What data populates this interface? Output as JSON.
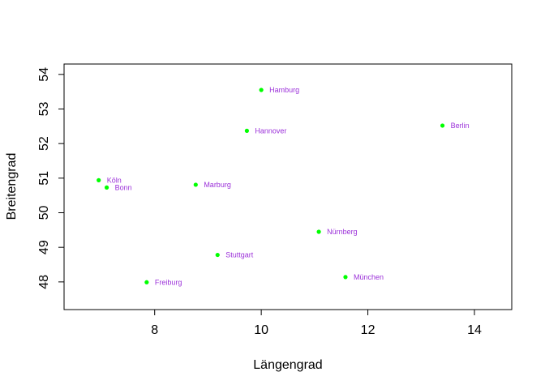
{
  "chart_data": {
    "type": "scatter",
    "title": "",
    "xlabel": "Längengrad",
    "ylabel": "Breitengrad",
    "xlim": [
      6.3,
      14.7
    ],
    "ylim": [
      47.2,
      54.3
    ],
    "xticks": [
      8,
      10,
      12,
      14
    ],
    "yticks": [
      48,
      49,
      50,
      51,
      52,
      53,
      54
    ],
    "grid": false,
    "point_color": "#00ff00",
    "label_color": "#9b30d9",
    "points": [
      {
        "label": "Hamburg",
        "x": 10.0,
        "y": 53.55
      },
      {
        "label": "Berlin",
        "x": 13.4,
        "y": 52.52
      },
      {
        "label": "Hannover",
        "x": 9.73,
        "y": 52.37
      },
      {
        "label": "Köln",
        "x": 6.95,
        "y": 50.94
      },
      {
        "label": "Bonn",
        "x": 7.1,
        "y": 50.73
      },
      {
        "label": "Marburg",
        "x": 8.77,
        "y": 50.81
      },
      {
        "label": "Nürnberg",
        "x": 11.08,
        "y": 49.45
      },
      {
        "label": "Stuttgart",
        "x": 9.18,
        "y": 48.78
      },
      {
        "label": "München",
        "x": 11.58,
        "y": 48.14
      },
      {
        "label": "Freiburg",
        "x": 7.85,
        "y": 47.99
      }
    ]
  }
}
